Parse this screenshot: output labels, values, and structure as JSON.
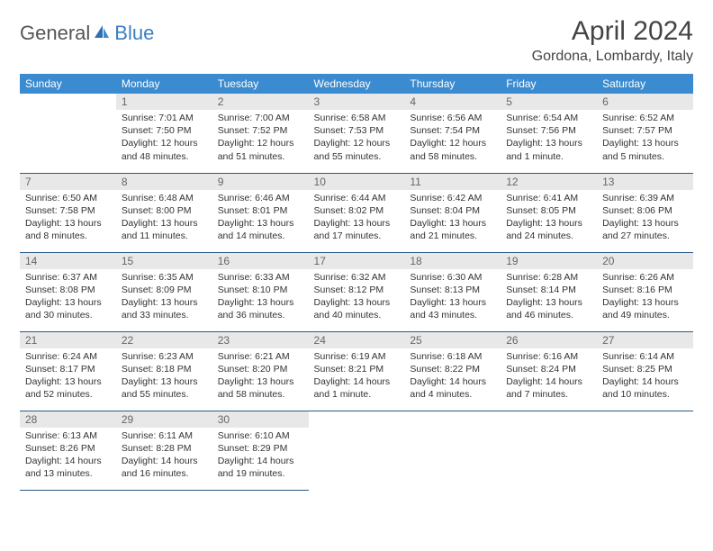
{
  "logo": {
    "part1": "General",
    "part2": "Blue"
  },
  "title": "April 2024",
  "location": "Gordona, Lombardy, Italy",
  "colors": {
    "header_bg": "#3a8bcf",
    "header_text": "#ffffff",
    "daynum_bg": "#e8e8e8",
    "daynum_text": "#666666",
    "row_border": "#2b5a8a",
    "logo_accent": "#3a7fc4",
    "body_text": "#333333"
  },
  "weekdays": [
    "Sunday",
    "Monday",
    "Tuesday",
    "Wednesday",
    "Thursday",
    "Friday",
    "Saturday"
  ],
  "weeks": [
    [
      null,
      {
        "n": "1",
        "sr": "7:01 AM",
        "ss": "7:50 PM",
        "dl": "12 hours and 48 minutes."
      },
      {
        "n": "2",
        "sr": "7:00 AM",
        "ss": "7:52 PM",
        "dl": "12 hours and 51 minutes."
      },
      {
        "n": "3",
        "sr": "6:58 AM",
        "ss": "7:53 PM",
        "dl": "12 hours and 55 minutes."
      },
      {
        "n": "4",
        "sr": "6:56 AM",
        "ss": "7:54 PM",
        "dl": "12 hours and 58 minutes."
      },
      {
        "n": "5",
        "sr": "6:54 AM",
        "ss": "7:56 PM",
        "dl": "13 hours and 1 minute."
      },
      {
        "n": "6",
        "sr": "6:52 AM",
        "ss": "7:57 PM",
        "dl": "13 hours and 5 minutes."
      }
    ],
    [
      {
        "n": "7",
        "sr": "6:50 AM",
        "ss": "7:58 PM",
        "dl": "13 hours and 8 minutes."
      },
      {
        "n": "8",
        "sr": "6:48 AM",
        "ss": "8:00 PM",
        "dl": "13 hours and 11 minutes."
      },
      {
        "n": "9",
        "sr": "6:46 AM",
        "ss": "8:01 PM",
        "dl": "13 hours and 14 minutes."
      },
      {
        "n": "10",
        "sr": "6:44 AM",
        "ss": "8:02 PM",
        "dl": "13 hours and 17 minutes."
      },
      {
        "n": "11",
        "sr": "6:42 AM",
        "ss": "8:04 PM",
        "dl": "13 hours and 21 minutes."
      },
      {
        "n": "12",
        "sr": "6:41 AM",
        "ss": "8:05 PM",
        "dl": "13 hours and 24 minutes."
      },
      {
        "n": "13",
        "sr": "6:39 AM",
        "ss": "8:06 PM",
        "dl": "13 hours and 27 minutes."
      }
    ],
    [
      {
        "n": "14",
        "sr": "6:37 AM",
        "ss": "8:08 PM",
        "dl": "13 hours and 30 minutes."
      },
      {
        "n": "15",
        "sr": "6:35 AM",
        "ss": "8:09 PM",
        "dl": "13 hours and 33 minutes."
      },
      {
        "n": "16",
        "sr": "6:33 AM",
        "ss": "8:10 PM",
        "dl": "13 hours and 36 minutes."
      },
      {
        "n": "17",
        "sr": "6:32 AM",
        "ss": "8:12 PM",
        "dl": "13 hours and 40 minutes."
      },
      {
        "n": "18",
        "sr": "6:30 AM",
        "ss": "8:13 PM",
        "dl": "13 hours and 43 minutes."
      },
      {
        "n": "19",
        "sr": "6:28 AM",
        "ss": "8:14 PM",
        "dl": "13 hours and 46 minutes."
      },
      {
        "n": "20",
        "sr": "6:26 AM",
        "ss": "8:16 PM",
        "dl": "13 hours and 49 minutes."
      }
    ],
    [
      {
        "n": "21",
        "sr": "6:24 AM",
        "ss": "8:17 PM",
        "dl": "13 hours and 52 minutes."
      },
      {
        "n": "22",
        "sr": "6:23 AM",
        "ss": "8:18 PM",
        "dl": "13 hours and 55 minutes."
      },
      {
        "n": "23",
        "sr": "6:21 AM",
        "ss": "8:20 PM",
        "dl": "13 hours and 58 minutes."
      },
      {
        "n": "24",
        "sr": "6:19 AM",
        "ss": "8:21 PM",
        "dl": "14 hours and 1 minute."
      },
      {
        "n": "25",
        "sr": "6:18 AM",
        "ss": "8:22 PM",
        "dl": "14 hours and 4 minutes."
      },
      {
        "n": "26",
        "sr": "6:16 AM",
        "ss": "8:24 PM",
        "dl": "14 hours and 7 minutes."
      },
      {
        "n": "27",
        "sr": "6:14 AM",
        "ss": "8:25 PM",
        "dl": "14 hours and 10 minutes."
      }
    ],
    [
      {
        "n": "28",
        "sr": "6:13 AM",
        "ss": "8:26 PM",
        "dl": "14 hours and 13 minutes."
      },
      {
        "n": "29",
        "sr": "6:11 AM",
        "ss": "8:28 PM",
        "dl": "14 hours and 16 minutes."
      },
      {
        "n": "30",
        "sr": "6:10 AM",
        "ss": "8:29 PM",
        "dl": "14 hours and 19 minutes."
      },
      null,
      null,
      null,
      null
    ]
  ],
  "labels": {
    "sunrise": "Sunrise: ",
    "sunset": "Sunset: ",
    "daylight": "Daylight: "
  }
}
